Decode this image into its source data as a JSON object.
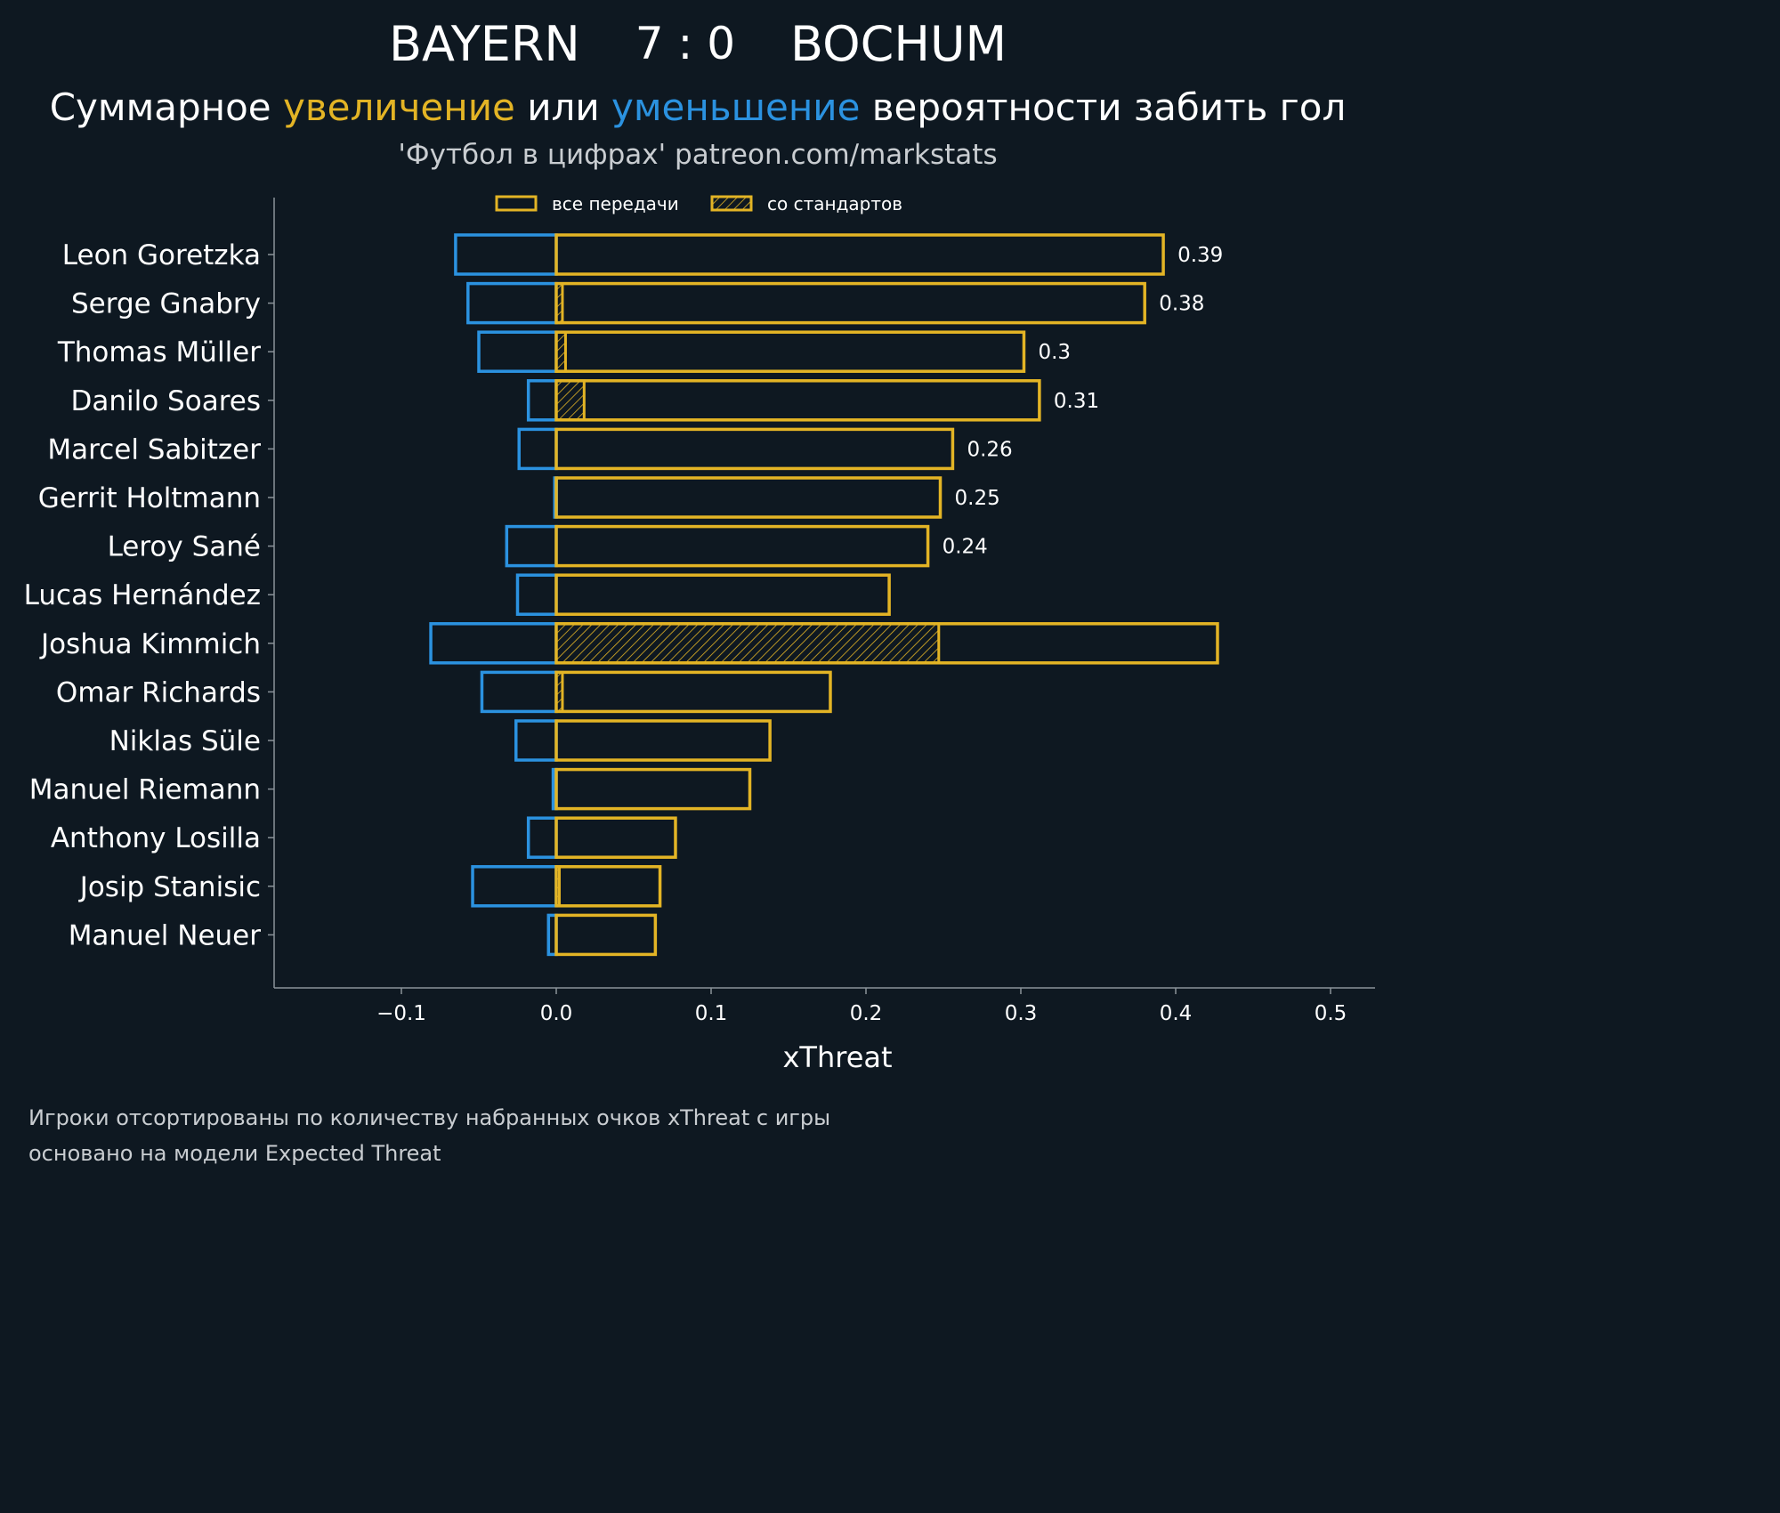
{
  "header": {
    "team_home": "BAYERN",
    "score": "7 : 0",
    "team_away": "BOCHUM",
    "subtitle_part1": "Суммарное ",
    "subtitle_increase": "увеличение",
    "subtitle_part2": " или ",
    "subtitle_decrease": "уменьшение",
    "subtitle_part3": " вероятности забить гол",
    "source": "'Футбол в цифрах' patreon.com/markstats"
  },
  "colors": {
    "background": "#0e1821",
    "increase": "#e3b425",
    "decrease": "#2b92e0",
    "axis": "#8a9299"
  },
  "chart_data": {
    "type": "bar",
    "orientation": "horizontal",
    "xlabel": "xThreat",
    "xlim": [
      -0.18,
      0.53
    ],
    "xticks": [
      -0.1,
      0.0,
      0.1,
      0.2,
      0.3,
      0.4,
      0.5
    ],
    "xtick_labels": [
      "−0.1",
      "0.0",
      "0.1",
      "0.2",
      "0.3",
      "0.4",
      "0.5"
    ],
    "legend": {
      "position": "top-center",
      "entries": [
        {
          "label": "все передачи",
          "style": "outline"
        },
        {
          "label": "со стандартов",
          "style": "hatched"
        }
      ]
    },
    "categories": [
      "Leon Goretzka",
      "Serge Gnabry",
      "Thomas Müller",
      "Danilo Soares",
      "Marcel Sabitzer",
      "Gerrit Holtmann",
      "Leroy Sané",
      "Lucas Hernández",
      "Joshua Kimmich",
      "Omar Richards",
      "Niklas Süle",
      "Manuel Riemann",
      "Anthony Losilla",
      "Josip Stanisic",
      "Manuel Neuer"
    ],
    "series": [
      {
        "name": "increase (все передачи)",
        "values": [
          0.392,
          0.38,
          0.302,
          0.312,
          0.256,
          0.248,
          0.24,
          0.215,
          0.427,
          0.177,
          0.138,
          0.125,
          0.077,
          0.067,
          0.064
        ]
      },
      {
        "name": "decrease",
        "values": [
          -0.065,
          -0.057,
          -0.05,
          -0.018,
          -0.024,
          -0.001,
          -0.032,
          -0.025,
          -0.081,
          -0.048,
          -0.026,
          -0.002,
          -0.018,
          -0.054,
          -0.005
        ]
      },
      {
        "name": "set pieces (со стандартов)",
        "values": [
          0.0,
          0.004,
          0.006,
          0.018,
          0.0,
          0.0,
          0.0,
          0.0,
          0.247,
          0.004,
          0.0,
          0.0,
          0.0,
          0.002,
          0.0
        ]
      }
    ],
    "net_labels": [
      "0.39",
      "0.38",
      "0.3",
      "0.31",
      "0.26",
      "0.25",
      "0.24",
      "",
      "",
      "",
      "",
      "",
      "",
      "",
      ""
    ]
  },
  "footnotes": {
    "line1": "Игроки отсортированы по количеству набранных очков xThreat с игры",
    "line2": "основано на модели Expected Threat"
  }
}
